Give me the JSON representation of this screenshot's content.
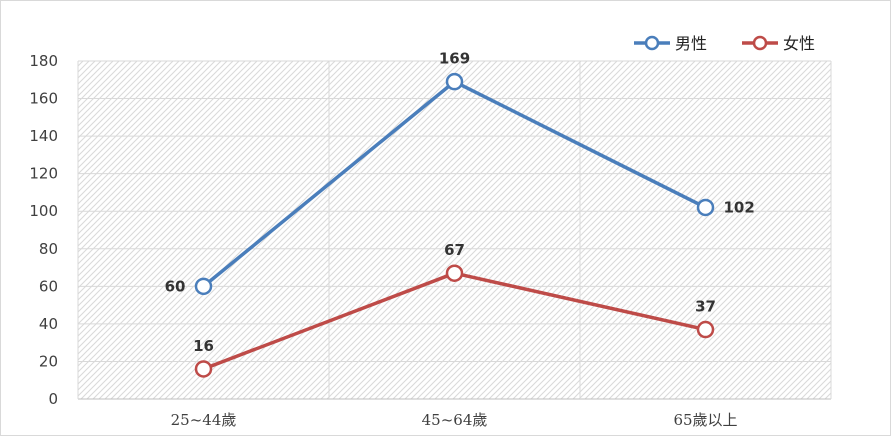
{
  "chart_data": {
    "type": "line",
    "categories": [
      "25~44歲",
      "45~64歲",
      "65歲以上"
    ],
    "series": [
      {
        "name": "男性",
        "values": [
          60,
          169,
          102
        ],
        "color": "#4a7ebb",
        "marker": "open-circle"
      },
      {
        "name": "女性",
        "values": [
          16,
          67,
          37
        ],
        "color": "#be4b48",
        "marker": "open-circle"
      }
    ],
    "ylim": [
      0,
      180
    ],
    "yticks": [
      0,
      20,
      40,
      60,
      80,
      100,
      120,
      140,
      160,
      180
    ],
    "grid": true,
    "plot_background": "diagonal-hatch",
    "legend_position": "top-right",
    "data_labels": true
  }
}
